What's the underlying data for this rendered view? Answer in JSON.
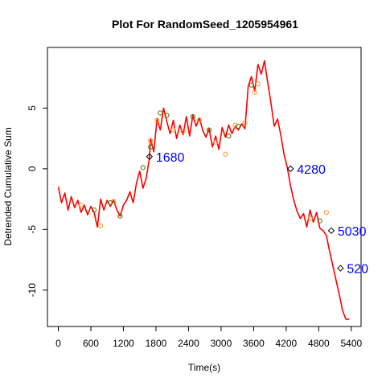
{
  "chart_data": {
    "type": "line",
    "title": "Plot For RandomSeed_1205954961",
    "xlabel": "Time(s)",
    "ylabel": "Detrended Cumulative Sum",
    "xlim": [
      -200,
      5580
    ],
    "ylim": [
      -13,
      10
    ],
    "x_ticks": [
      0,
      600,
      1200,
      1800,
      2400,
      3000,
      3600,
      4200,
      4800,
      5400
    ],
    "y_ticks": [
      -10,
      -5,
      0,
      5
    ],
    "grid": false,
    "legend": "none",
    "colors": {
      "line": "#ff0000",
      "green_markers": "#556b00",
      "orange_markers": "#ff9a2e",
      "annotation": "#0000ff",
      "diamond": "#000000"
    },
    "series": [
      {
        "x": [
          0,
          60,
          120,
          180,
          240,
          300,
          360,
          420,
          480,
          540,
          600,
          660,
          720,
          780,
          840,
          900,
          960,
          1020,
          1080,
          1140,
          1200,
          1260,
          1320,
          1380,
          1440,
          1500,
          1560,
          1620,
          1680,
          1700,
          1760,
          1820,
          1880,
          1940,
          2000,
          2060,
          2120,
          2180,
          2240,
          2300,
          2360,
          2420,
          2480,
          2540,
          2600,
          2660,
          2720,
          2780,
          2840,
          2900,
          2960,
          3020,
          3080,
          3140,
          3200,
          3260,
          3320,
          3380,
          3440,
          3500,
          3560,
          3620,
          3680,
          3740,
          3800,
          3860,
          3920,
          3980,
          4040,
          4100,
          4160,
          4220,
          4280,
          4340,
          4400,
          4460,
          4520,
          4580,
          4640,
          4700,
          4760,
          4820,
          4880,
          4940,
          5000,
          5060,
          5120,
          5180,
          5240,
          5300,
          5360
        ],
        "y": [
          -1.5,
          -2.8,
          -2.0,
          -3.4,
          -2.3,
          -3.2,
          -2.6,
          -3.6,
          -3.0,
          -3.8,
          -3.1,
          -3.6,
          -4.8,
          -2.5,
          -3.4,
          -2.6,
          -3.1,
          -2.6,
          -3.4,
          -3.9,
          -3.0,
          -2.6,
          -1.9,
          -2.8,
          -1.2,
          -0.2,
          -1.6,
          -0.8,
          0.9,
          2.5,
          1.4,
          4.1,
          3.2,
          5.0,
          3.9,
          2.9,
          4.0,
          2.5,
          3.6,
          2.8,
          4.3,
          2.7,
          4.4,
          3.5,
          4.2,
          3.2,
          2.6,
          3.3,
          1.8,
          2.7,
          1.6,
          3.4,
          2.6,
          3.6,
          2.9,
          3.5,
          3.2,
          3.7,
          3.3,
          6.8,
          7.6,
          6.4,
          8.6,
          7.8,
          8.9,
          7.1,
          5.4,
          3.5,
          4.1,
          2.8,
          1.2,
          0.1,
          -1.4,
          -2.6,
          -3.5,
          -4.1,
          -3.7,
          -4.8,
          -3.4,
          -4.4,
          -3.6,
          -4.9,
          -5.1,
          -5.5,
          -6.8,
          -8.0,
          -9.2,
          -10.4,
          -11.7,
          -12.4,
          -12.4
        ]
      }
    ],
    "annotations": [
      {
        "x": 1680,
        "y": 1.0,
        "text": "1680"
      },
      {
        "x": 4280,
        "y": 0.0,
        "text": "4280"
      },
      {
        "x": 5030,
        "y": -5.1,
        "text": "5030"
      },
      {
        "x": 5200,
        "y": -8.2,
        "text": "520"
      }
    ],
    "markers_green": [
      {
        "x": 660,
        "y": -3.4
      },
      {
        "x": 960,
        "y": -2.8
      },
      {
        "x": 1140,
        "y": -3.9
      },
      {
        "x": 1560,
        "y": 0.1
      },
      {
        "x": 1700,
        "y": 1.8
      },
      {
        "x": 1880,
        "y": 4.6
      },
      {
        "x": 2000,
        "y": 4.4
      },
      {
        "x": 2480,
        "y": 4.3
      },
      {
        "x": 2780,
        "y": 3.2
      },
      {
        "x": 3140,
        "y": 2.7
      },
      {
        "x": 3320,
        "y": 3.5
      },
      {
        "x": 3560,
        "y": 6.9
      },
      {
        "x": 4820,
        "y": -4.3
      }
    ],
    "markers_orange": [
      {
        "x": 420,
        "y": -3.0
      },
      {
        "x": 780,
        "y": -4.7
      },
      {
        "x": 1020,
        "y": -2.7
      },
      {
        "x": 1700,
        "y": 2.3
      },
      {
        "x": 1820,
        "y": 4.0
      },
      {
        "x": 2120,
        "y": 3.2
      },
      {
        "x": 2300,
        "y": 3.1
      },
      {
        "x": 2600,
        "y": 4.0
      },
      {
        "x": 2900,
        "y": 2.2
      },
      {
        "x": 3080,
        "y": 1.2
      },
      {
        "x": 3260,
        "y": 3.6
      },
      {
        "x": 3440,
        "y": 3.8
      },
      {
        "x": 3620,
        "y": 6.3
      },
      {
        "x": 3680,
        "y": 7.0
      },
      {
        "x": 4640,
        "y": -4.1
      },
      {
        "x": 4940,
        "y": -3.6
      }
    ]
  }
}
